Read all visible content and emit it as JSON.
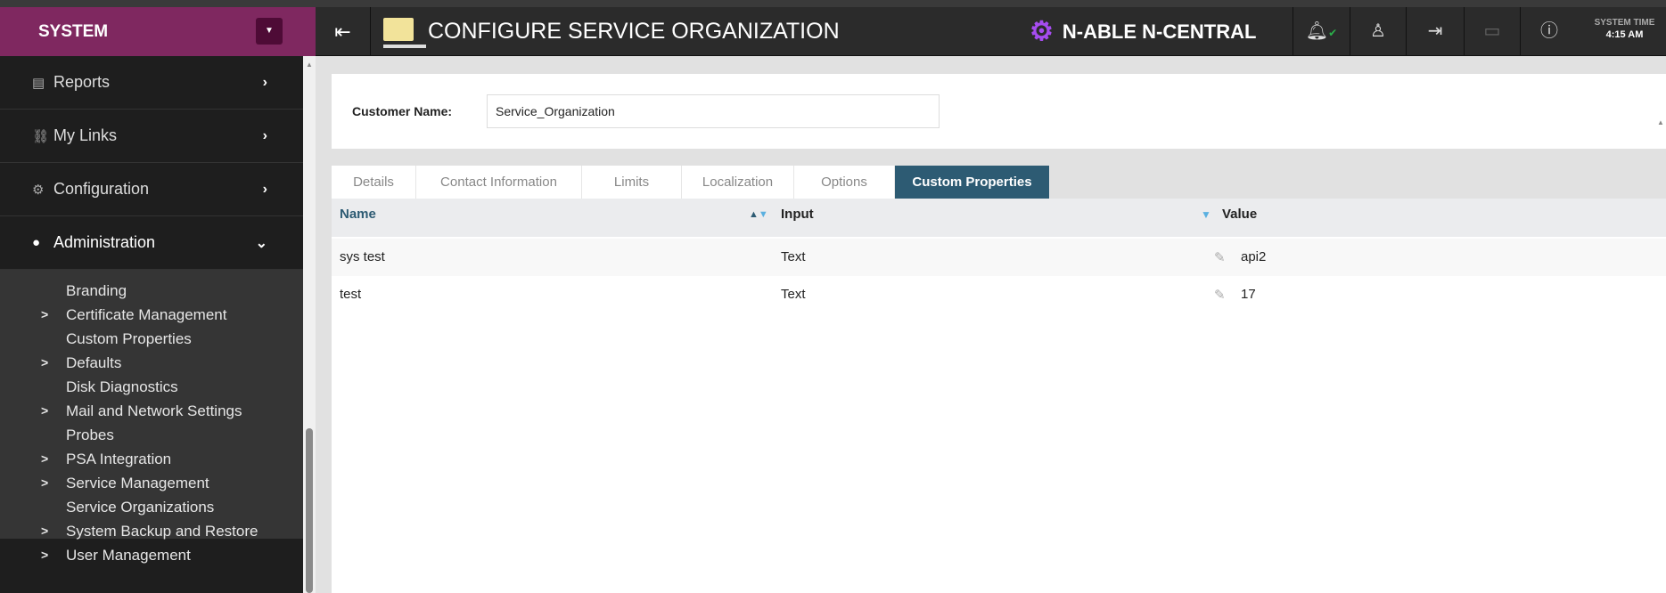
{
  "header": {
    "section": "SYSTEM",
    "title": "CONFIGURE SERVICE ORGANIZATION",
    "brand": "N-ABLE N-CENTRAL",
    "system_time_label": "SYSTEM TIME",
    "system_time": "4:15 AM",
    "icons": [
      "alerts-bell-icon",
      "user-icon",
      "logout-icon",
      "message-icon",
      "help-icon"
    ]
  },
  "sidebar": {
    "items": [
      {
        "label": "Reports",
        "icon": "report-icon"
      },
      {
        "label": "My Links",
        "icon": "link-icon"
      },
      {
        "label": "Configuration",
        "icon": "gear-icon"
      },
      {
        "label": "Administration",
        "icon": "user-icon",
        "expanded": true
      }
    ],
    "subitems": [
      {
        "label": "Branding",
        "has_children": false
      },
      {
        "label": "Certificate Management",
        "has_children": true
      },
      {
        "label": "Custom Properties",
        "has_children": false
      },
      {
        "label": "Defaults",
        "has_children": true
      },
      {
        "label": "Disk Diagnostics",
        "has_children": false
      },
      {
        "label": "Mail and Network Settings",
        "has_children": true
      },
      {
        "label": "Probes",
        "has_children": false
      },
      {
        "label": "PSA Integration",
        "has_children": true
      },
      {
        "label": "Service Management",
        "has_children": true
      },
      {
        "label": "Service Organizations",
        "has_children": false
      },
      {
        "label": "System Backup and Restore",
        "has_children": true
      },
      {
        "label": "User Management",
        "has_children": true
      }
    ]
  },
  "customer": {
    "label": "Customer Name:",
    "value": "Service_Organization"
  },
  "tabs": [
    {
      "label": "Details"
    },
    {
      "label": "Contact Information"
    },
    {
      "label": "Limits"
    },
    {
      "label": "Localization"
    },
    {
      "label": "Options"
    },
    {
      "label": "Custom Properties",
      "active": true
    }
  ],
  "table": {
    "columns": [
      "Name",
      "Input",
      "Value"
    ],
    "rows": [
      {
        "name": "sys test",
        "input": "Text",
        "value": "api2"
      },
      {
        "name": "test",
        "input": "Text",
        "value": "17"
      }
    ]
  },
  "colors": {
    "system": "#7f2860",
    "active_tab": "#2d5b73",
    "brand_icon": "#a64cf0"
  }
}
